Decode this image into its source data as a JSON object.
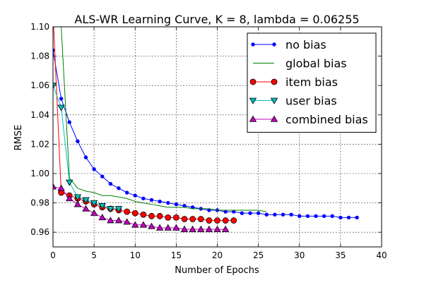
{
  "chart_data": {
    "type": "line",
    "title": "ALS-WR Learning Curve, K = 8, lambda = 0.06255",
    "xlabel": "Number of Epochs",
    "ylabel": "RMSE",
    "xlim": [
      0,
      40
    ],
    "ylim": [
      0.95,
      1.1
    ],
    "xticks": [
      0,
      5,
      10,
      15,
      20,
      25,
      30,
      35,
      40
    ],
    "yticks": [
      0.96,
      0.98,
      1.0,
      1.02,
      1.04,
      1.06,
      1.08,
      1.1
    ],
    "xtick_labels": [
      "0",
      "5",
      "10",
      "15",
      "20",
      "25",
      "30",
      "35",
      "40"
    ],
    "ytick_labels": [
      "0.96",
      "0.98",
      "1.00",
      "1.02",
      "1.04",
      "1.06",
      "1.08",
      "1.10"
    ],
    "grid": true,
    "legend_position": "upper-right",
    "series": [
      {
        "name": "no bias",
        "color": "#0000ff",
        "marker": "point",
        "x": [
          0,
          1,
          2,
          3,
          4,
          5,
          6,
          7,
          8,
          9,
          10,
          11,
          12,
          13,
          14,
          15,
          16,
          17,
          18,
          19,
          20,
          21,
          22,
          23,
          24,
          25,
          26,
          27,
          28,
          29,
          30,
          31,
          32,
          33,
          34,
          35,
          36,
          37
        ],
        "y": [
          1.084,
          1.051,
          1.035,
          1.022,
          1.011,
          1.003,
          0.998,
          0.993,
          0.99,
          0.987,
          0.985,
          0.983,
          0.982,
          0.981,
          0.98,
          0.979,
          0.978,
          0.977,
          0.976,
          0.975,
          0.975,
          0.974,
          0.974,
          0.973,
          0.973,
          0.973,
          0.972,
          0.972,
          0.972,
          0.972,
          0.971,
          0.971,
          0.971,
          0.971,
          0.971,
          0.97,
          0.97,
          0.97
        ]
      },
      {
        "name": "global bias",
        "color": "#008000",
        "marker": "none",
        "x": [
          0,
          1,
          2,
          3,
          4,
          5,
          6,
          7,
          8,
          9,
          10,
          11,
          12,
          13,
          14,
          15,
          16,
          17,
          18,
          19,
          20,
          21,
          22,
          23,
          24,
          25,
          26
        ],
        "y": [
          1.11,
          1.1,
          0.997,
          0.99,
          0.988,
          0.987,
          0.985,
          0.985,
          0.984,
          0.983,
          0.981,
          0.98,
          0.979,
          0.978,
          0.977,
          0.977,
          0.977,
          0.976,
          0.976,
          0.976,
          0.975,
          0.975,
          0.975,
          0.975,
          0.975,
          0.975,
          0.974
        ]
      },
      {
        "name": "item bias",
        "color": "#ff0000",
        "marker": "circle",
        "x": [
          0,
          1,
          2,
          3,
          4,
          5,
          6,
          7,
          8,
          9,
          10,
          11,
          12,
          13,
          14,
          15,
          16,
          17,
          18,
          19,
          20,
          21,
          22
        ],
        "y": [
          1.11,
          0.987,
          0.985,
          0.983,
          0.981,
          0.979,
          0.977,
          0.976,
          0.975,
          0.974,
          0.973,
          0.972,
          0.971,
          0.971,
          0.97,
          0.97,
          0.969,
          0.969,
          0.969,
          0.968,
          0.968,
          0.968,
          0.968
        ]
      },
      {
        "name": "user bias",
        "color": "#00bfbf",
        "marker": "triangle-down",
        "x": [
          0,
          1,
          2,
          3,
          4,
          5,
          6,
          7,
          8
        ],
        "y": [
          1.06,
          1.045,
          0.994,
          0.984,
          0.982,
          0.98,
          0.978,
          0.976,
          0.976
        ]
      },
      {
        "name": "combined bias",
        "color": "#bf00bf",
        "marker": "triangle-up",
        "x": [
          0,
          1,
          2,
          3,
          4,
          5,
          6,
          7,
          8,
          9,
          10,
          11,
          12,
          13,
          14,
          15,
          16,
          17,
          18,
          19,
          20,
          21
        ],
        "y": [
          0.991,
          0.99,
          0.983,
          0.979,
          0.976,
          0.973,
          0.97,
          0.968,
          0.968,
          0.967,
          0.965,
          0.965,
          0.964,
          0.963,
          0.963,
          0.963,
          0.962,
          0.962,
          0.962,
          0.962,
          0.962,
          0.962
        ]
      }
    ]
  }
}
